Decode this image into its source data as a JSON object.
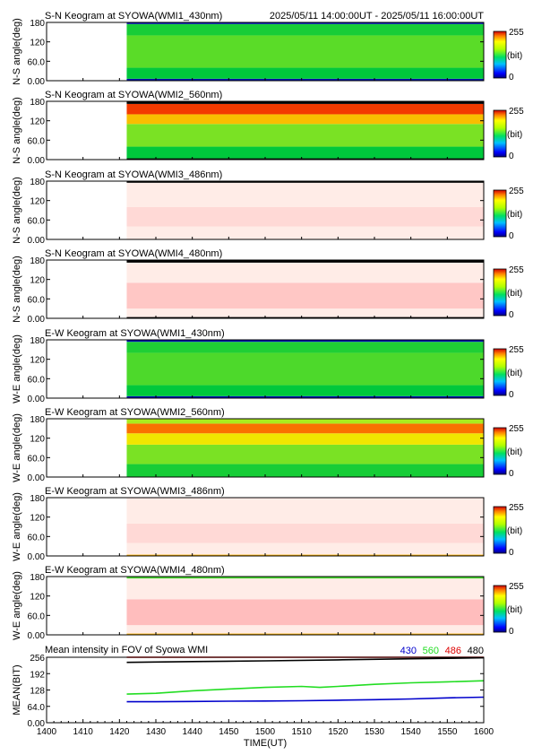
{
  "header": {
    "time_range": "2025/05/11 14:00:00UT - 2025/05/11 16:00:00UT"
  },
  "colorbar": {
    "max_label": "255",
    "unit_label": "(bit)",
    "min_label": "0"
  },
  "chart_data": [
    {
      "type": "heatmap",
      "title": "S-N Keogram at SYOWA(WMI1_430nm)",
      "ylabel": "N-S angle(deg)",
      "ylim": [
        0,
        180
      ],
      "yticks": [
        "0.00",
        "60.0",
        "120",
        "180"
      ],
      "x": "time UT 14:00-16:00",
      "data_start": "14:22",
      "bands": [
        {
          "from": 0,
          "to": 6,
          "level": 30
        },
        {
          "from": 6,
          "to": 40,
          "level": 105
        },
        {
          "from": 40,
          "to": 140,
          "level": 125
        },
        {
          "from": 140,
          "to": 175,
          "level": 110
        },
        {
          "from": 175,
          "to": 180,
          "level": 30
        }
      ]
    },
    {
      "type": "heatmap",
      "title": "S-N Keogram at SYOWA(WMI2_560nm)",
      "ylabel": "N-S angle(deg)",
      "ylim": [
        0,
        180
      ],
      "yticks": [
        "0.00",
        "60.0",
        "120",
        "180"
      ],
      "x": "time UT 14:00-16:00",
      "data_start": "14:22",
      "bands": [
        {
          "from": 0,
          "to": 4,
          "level": 0
        },
        {
          "from": 4,
          "to": 40,
          "level": 105
        },
        {
          "from": 40,
          "to": 110,
          "level": 135
        },
        {
          "from": 110,
          "to": 140,
          "level": 190
        },
        {
          "from": 140,
          "to": 172,
          "level": 230
        },
        {
          "from": 172,
          "to": 180,
          "level": 0
        }
      ]
    },
    {
      "type": "heatmap",
      "title": "S-N Keogram at SYOWA(WMI3_486nm)",
      "ylabel": "N-S angle(deg)",
      "ylim": [
        0,
        180
      ],
      "yticks": [
        "0.00",
        "60.0",
        "120",
        "180"
      ],
      "x": "time UT 14:00-16:00",
      "data_start": "14:22",
      "bands": [
        {
          "from": 0,
          "to": 40,
          "level": 258
        },
        {
          "from": 40,
          "to": 100,
          "level": 262
        },
        {
          "from": 100,
          "to": 175,
          "level": 258
        },
        {
          "from": 175,
          "to": 180,
          "level": 0
        }
      ]
    },
    {
      "type": "heatmap",
      "title": "S-N Keogram at SYOWA(WMI4_480nm)",
      "ylabel": "N-S angle(deg)",
      "ylim": [
        0,
        180
      ],
      "yticks": [
        "0.00",
        "60.0",
        "120",
        "180"
      ],
      "x": "time UT 14:00-16:00",
      "data_start": "14:22",
      "bands": [
        {
          "from": 0,
          "to": 4,
          "level": 0
        },
        {
          "from": 4,
          "to": 30,
          "level": 258
        },
        {
          "from": 30,
          "to": 110,
          "level": 266
        },
        {
          "from": 110,
          "to": 172,
          "level": 258
        },
        {
          "from": 172,
          "to": 180,
          "level": 0
        }
      ]
    },
    {
      "type": "heatmap",
      "title": "E-W Keogram at SYOWA(WMI1_430nm)",
      "ylabel": "W-E angle(deg)",
      "ylim": [
        0,
        180
      ],
      "yticks": [
        "0.00",
        "60.0",
        "120",
        "180"
      ],
      "x": "time UT 14:00-16:00",
      "data_start": "14:22",
      "bands": [
        {
          "from": 0,
          "to": 6,
          "level": 30
        },
        {
          "from": 6,
          "to": 40,
          "level": 105
        },
        {
          "from": 40,
          "to": 140,
          "level": 122
        },
        {
          "from": 140,
          "to": 174,
          "level": 112
        },
        {
          "from": 174,
          "to": 180,
          "level": 30
        }
      ]
    },
    {
      "type": "heatmap",
      "title": "E-W Keogram at SYOWA(WMI2_560nm)",
      "ylabel": "W-E angle(deg)",
      "ylim": [
        0,
        180
      ],
      "yticks": [
        "0.00",
        "60.0",
        "120",
        "180"
      ],
      "x": "time UT 14:00-16:00",
      "data_start": "14:22",
      "bands": [
        {
          "from": 0,
          "to": 40,
          "level": 110
        },
        {
          "from": 40,
          "to": 100,
          "level": 135
        },
        {
          "from": 100,
          "to": 135,
          "level": 175
        },
        {
          "from": 135,
          "to": 165,
          "level": 215
        },
        {
          "from": 165,
          "to": 180,
          "level": 150
        }
      ]
    },
    {
      "type": "heatmap",
      "title": "E-W Keogram at SYOWA(WMI3_486nm)",
      "ylabel": "W-E angle(deg)",
      "ylim": [
        0,
        180
      ],
      "yticks": [
        "0.00",
        "60.0",
        "120",
        "180"
      ],
      "x": "time UT 14:00-16:00",
      "data_start": "14:22",
      "bands": [
        {
          "from": 0,
          "to": 4,
          "level": 195
        },
        {
          "from": 4,
          "to": 40,
          "level": 258
        },
        {
          "from": 40,
          "to": 100,
          "level": 262
        },
        {
          "from": 100,
          "to": 180,
          "level": 258
        }
      ]
    },
    {
      "type": "heatmap",
      "title": "E-W Keogram at SYOWA(WMI4_480nm)",
      "ylabel": "W-E angle(deg)",
      "ylim": [
        0,
        180
      ],
      "yticks": [
        "0.00",
        "60.0",
        "120",
        "180"
      ],
      "x": "time UT 14:00-16:00",
      "data_start": "14:22",
      "bands": [
        {
          "from": 0,
          "to": 4,
          "level": 195
        },
        {
          "from": 4,
          "to": 30,
          "level": 258
        },
        {
          "from": 30,
          "to": 110,
          "level": 268
        },
        {
          "from": 110,
          "to": 174,
          "level": 258
        },
        {
          "from": 174,
          "to": 180,
          "level": 120
        }
      ]
    },
    {
      "type": "line",
      "title": "Mean intensity in FOV of Syowa WMI",
      "xlabel": "TIME(UT)",
      "ylabel": "MEAN(BIT)",
      "xlim": [
        0,
        120
      ],
      "xticks": [
        "1400",
        "1410",
        "1420",
        "1430",
        "1440",
        "1450",
        "1500",
        "1510",
        "1520",
        "1530",
        "1540",
        "1550",
        "1600"
      ],
      "ylim": [
        0,
        256
      ],
      "yticks": [
        "0.00",
        "64.0",
        "128",
        "192",
        "256"
      ],
      "series": [
        {
          "name": "430",
          "color": "#0000cc",
          "x": [
            22,
            30,
            40,
            50,
            60,
            70,
            80,
            90,
            100,
            110,
            120
          ],
          "y": [
            82,
            82,
            83,
            84,
            85,
            86,
            88,
            90,
            93,
            97,
            100
          ]
        },
        {
          "name": "560",
          "color": "#22dd22",
          "x": [
            22,
            30,
            40,
            50,
            60,
            70,
            75,
            80,
            90,
            100,
            110,
            120
          ],
          "y": [
            112,
            115,
            125,
            132,
            138,
            142,
            138,
            142,
            150,
            156,
            160,
            164
          ]
        },
        {
          "name": "486",
          "color": "#dd0000",
          "x": [
            22,
            40,
            60,
            80,
            100,
            120
          ],
          "y": [
            258,
            259,
            260,
            261,
            262,
            263
          ]
        },
        {
          "name": "480",
          "color": "#000000",
          "x": [
            22,
            40,
            60,
            80,
            100,
            120
          ],
          "y": [
            236,
            239,
            242,
            246,
            250,
            254
          ]
        }
      ]
    }
  ]
}
